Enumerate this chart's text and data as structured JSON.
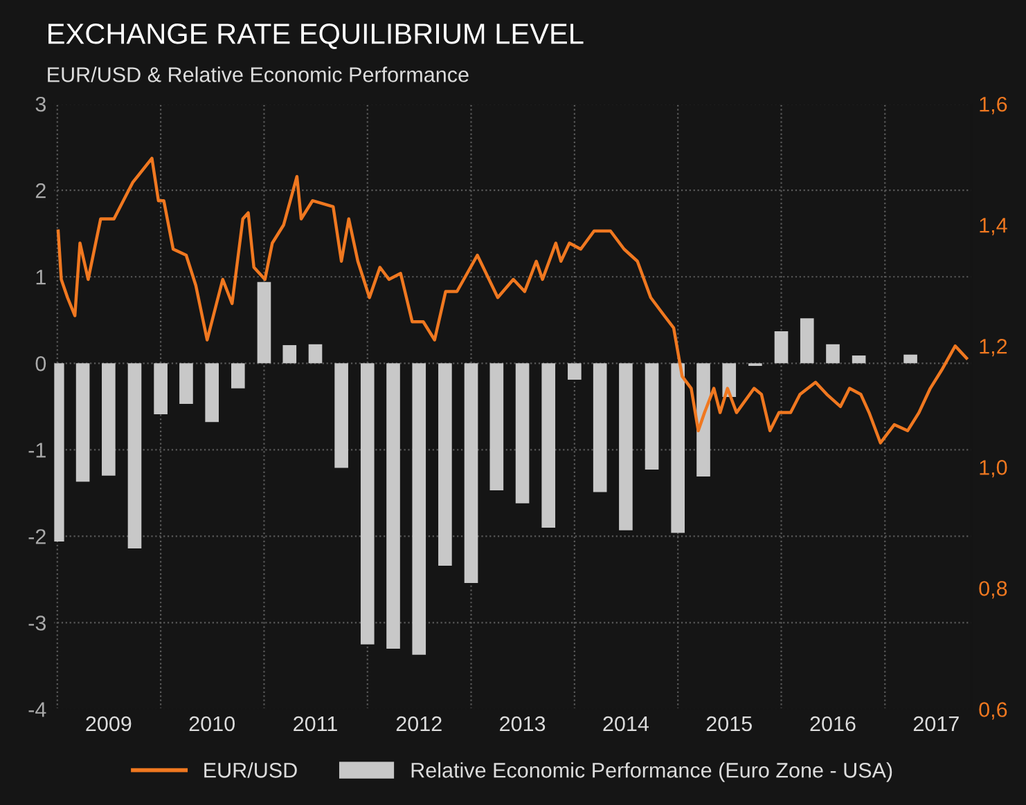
{
  "chart_data": {
    "type": "bar",
    "title": "EXCHANGE RATE EQUILIBRIUM LEVEL",
    "subtitle": "EUR/USD & Relative Economic Performance",
    "xlim": [
      "2008-12-18",
      "2017-11-03"
    ],
    "xticks": [
      {
        "value": "2009-01-01",
        "label": null
      },
      {
        "value": "2009-07-01",
        "label": "2009"
      },
      {
        "value": "2010-01-01",
        "label": null
      },
      {
        "value": "2010-07-01",
        "label": "2010"
      },
      {
        "value": "2011-01-01",
        "label": null
      },
      {
        "value": "2011-07-01",
        "label": "2011"
      },
      {
        "value": "2012-01-01",
        "label": null
      },
      {
        "value": "2012-07-01",
        "label": "2012"
      },
      {
        "value": "2013-01-01",
        "label": null
      },
      {
        "value": "2013-07-01",
        "label": "2013"
      },
      {
        "value": "2014-01-01",
        "label": null
      },
      {
        "value": "2014-07-01",
        "label": "2014"
      },
      {
        "value": "2015-01-01",
        "label": null
      },
      {
        "value": "2015-07-01",
        "label": "2015"
      },
      {
        "value": "2016-01-01",
        "label": null
      },
      {
        "value": "2016-07-01",
        "label": "2016"
      },
      {
        "value": "2017-01-01",
        "label": null
      },
      {
        "value": "2017-07-01",
        "label": "2017"
      }
    ],
    "ylim": [
      -4,
      3
    ],
    "yticks": [
      -4,
      -3,
      -2,
      -1,
      0,
      1,
      2,
      3
    ],
    "y2lim": [
      0.6,
      1.6
    ],
    "y2ticks": [
      {
        "value": 0.6,
        "label": "0,6"
      },
      {
        "value": 0.8,
        "label": "0,8"
      },
      {
        "value": 1.0,
        "label": "1,0"
      },
      {
        "value": 1.2,
        "label": "1,2"
      },
      {
        "value": 1.4,
        "label": "1,4"
      },
      {
        "value": 1.6,
        "label": "1,6"
      }
    ],
    "grid": true,
    "legend": "bottom",
    "series": [
      {
        "name": "Relative Economic Performance (Euro Zone - USA)",
        "color": "#c8c8c8",
        "x": [
          "2009-01-01",
          "2009-04-01",
          "2009-07-01",
          "2009-10-01",
          "2010-01-01",
          "2010-04-01",
          "2010-07-01",
          "2010-10-01",
          "2011-01-01",
          "2011-04-01",
          "2011-07-01",
          "2011-10-01",
          "2012-01-01",
          "2012-04-01",
          "2012-07-01",
          "2012-10-01",
          "2013-01-01",
          "2013-04-01",
          "2013-07-01",
          "2013-10-01",
          "2014-01-01",
          "2014-04-01",
          "2014-07-01",
          "2014-10-01",
          "2015-01-01",
          "2015-04-01",
          "2015-07-01",
          "2015-10-01",
          "2016-01-01",
          "2016-04-01",
          "2016-07-01",
          "2016-10-01",
          "2017-01-01",
          "2017-04-01"
        ],
        "values": [
          -2.06,
          -1.37,
          -1.3,
          -2.14,
          -0.59,
          -0.47,
          -0.68,
          -0.29,
          0.94,
          0.21,
          0.22,
          -1.21,
          -3.25,
          -3.3,
          -3.37,
          -2.34,
          -2.54,
          -1.47,
          -1.62,
          -1.9,
          -0.19,
          -1.49,
          -1.93,
          -1.23,
          -1.96,
          -1.31,
          -0.39,
          -0.03,
          0.37,
          0.52,
          0.22,
          0.09,
          null,
          0.1
        ]
      },
      {
        "name": "EUR/USD",
        "type": "line",
        "axis": "y2",
        "color": "#f07820",
        "line_style": "solid",
        "marker": "none",
        "x": [
          "2009-01-04",
          "2009-01-15",
          "2009-02-06",
          "2009-03-04",
          "2009-03-22",
          "2009-04-20",
          "2009-06-03",
          "2009-07-20",
          "2009-09-24",
          "2009-12-01",
          "2009-12-24",
          "2010-01-12",
          "2010-02-14",
          "2010-04-01",
          "2010-05-05",
          "2010-06-14",
          "2010-08-08",
          "2010-09-10",
          "2010-10-18",
          "2010-11-06",
          "2010-11-26",
          "2011-01-04",
          "2011-01-30",
          "2011-03-11",
          "2011-04-27",
          "2011-05-12",
          "2011-06-21",
          "2011-09-02",
          "2011-10-01",
          "2011-10-27",
          "2011-11-28",
          "2012-01-08",
          "2012-02-14",
          "2012-03-17",
          "2012-04-27",
          "2012-06-07",
          "2012-07-16",
          "2012-08-25",
          "2012-10-03",
          "2012-11-12",
          "2013-01-23",
          "2013-04-05",
          "2013-05-30",
          "2013-07-09",
          "2013-08-19",
          "2013-09-10",
          "2013-10-27",
          "2013-11-14",
          "2013-12-14",
          "2014-01-23",
          "2014-03-11",
          "2014-05-08",
          "2014-06-25",
          "2014-08-11",
          "2014-09-27",
          "2014-11-14",
          "2014-12-17",
          "2015-01-16",
          "2015-02-17",
          "2015-03-14",
          "2015-04-05",
          "2015-05-08",
          "2015-05-30",
          "2015-06-25",
          "2015-07-27",
          "2015-09-27",
          "2015-10-23",
          "2015-11-22",
          "2015-12-24",
          "2016-02-03",
          "2016-03-07",
          "2016-05-01",
          "2016-06-10",
          "2016-07-28",
          "2016-08-29",
          "2016-10-08",
          "2016-11-06",
          "2016-12-16",
          "2017-02-03",
          "2017-03-22",
          "2017-05-01",
          "2017-06-10",
          "2017-07-20",
          "2017-09-06",
          "2017-10-16"
        ],
        "values": [
          1.39,
          1.31,
          1.28,
          1.25,
          1.37,
          1.31,
          1.41,
          1.41,
          1.47,
          1.51,
          1.44,
          1.44,
          1.36,
          1.35,
          1.3,
          1.21,
          1.31,
          1.27,
          1.41,
          1.42,
          1.33,
          1.31,
          1.37,
          1.4,
          1.48,
          1.41,
          1.44,
          1.43,
          1.34,
          1.41,
          1.34,
          1.28,
          1.33,
          1.31,
          1.32,
          1.24,
          1.24,
          1.21,
          1.29,
          1.29,
          1.35,
          1.28,
          1.31,
          1.29,
          1.34,
          1.31,
          1.37,
          1.34,
          1.37,
          1.36,
          1.39,
          1.39,
          1.36,
          1.34,
          1.28,
          1.25,
          1.23,
          1.15,
          1.13,
          1.06,
          1.09,
          1.13,
          1.09,
          1.13,
          1.09,
          1.13,
          1.12,
          1.06,
          1.09,
          1.09,
          1.12,
          1.14,
          1.12,
          1.1,
          1.13,
          1.12,
          1.09,
          1.04,
          1.07,
          1.06,
          1.09,
          1.13,
          1.16,
          1.2,
          1.18
        ]
      }
    ]
  }
}
